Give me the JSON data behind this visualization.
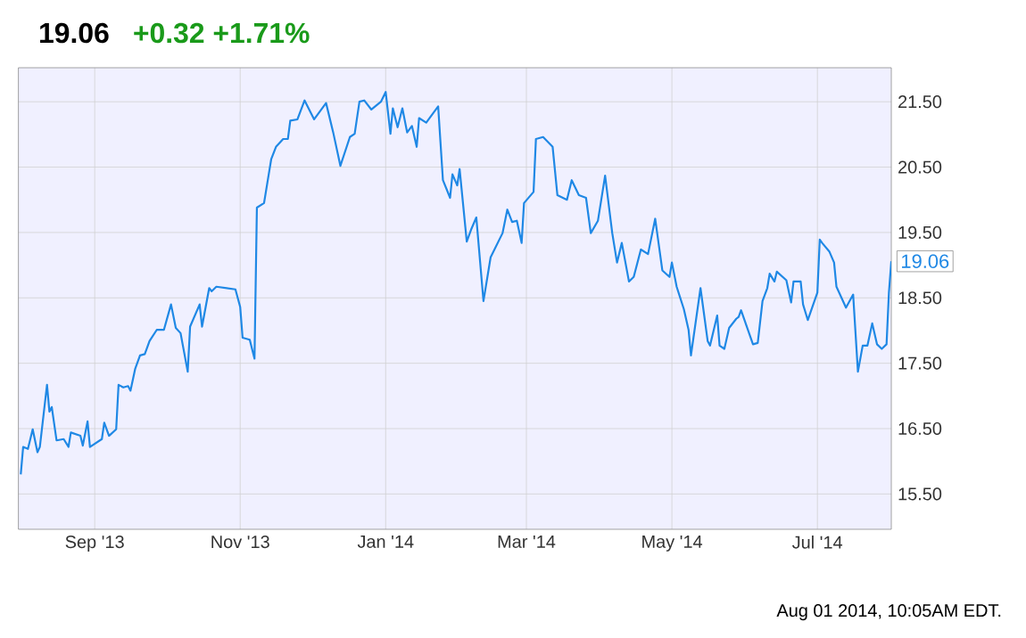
{
  "chart_data": {
    "type": "line",
    "title": "19.06",
    "subtitle": "+0.32   +1.71%",
    "annotations": [
      {
        "text": "19.06",
        "x": "2014-08-01",
        "y": 19.06
      },
      "Aug 01 2014, 10:05AM EDT."
    ],
    "xlim": [
      "2013-07-31",
      "2014-08-01"
    ],
    "xticks": [
      {
        "value": "2013-09-01",
        "label": "Sep '13"
      },
      {
        "value": "2013-11-01",
        "label": "Nov '13"
      },
      {
        "value": "2014-01-01",
        "label": "Jan '14"
      },
      {
        "value": "2014-03-01",
        "label": "Mar '14"
      },
      {
        "value": "2014-05-01",
        "label": "May '14"
      },
      {
        "value": "2014-07-01",
        "label": "Jul '14"
      }
    ],
    "ylim": [
      14.96,
      22.02
    ],
    "yticks": [
      {
        "value": 15.5,
        "label": "15.50"
      },
      {
        "value": 16.5,
        "label": "16.50"
      },
      {
        "value": 17.5,
        "label": "17.50"
      },
      {
        "value": 18.5,
        "label": "18.50"
      },
      {
        "value": 19.5,
        "label": "19.50"
      },
      {
        "value": 20.5,
        "label": "20.50"
      },
      {
        "value": 21.5,
        "label": "21.50"
      }
    ],
    "grid": true,
    "marker": "none",
    "line_style": "solid",
    "series": [
      {
        "color": "#1f88e5",
        "x": [
          "2013-08-01",
          "2013-08-02",
          "2013-08-04",
          "2013-08-06",
          "2013-08-08",
          "2013-08-09",
          "2013-08-12",
          "2013-08-13",
          "2013-08-14",
          "2013-08-16",
          "2013-08-19",
          "2013-08-21",
          "2013-08-22",
          "2013-08-26",
          "2013-08-27",
          "2013-08-29",
          "2013-08-30",
          "2013-09-04",
          "2013-09-05",
          "2013-09-07",
          "2013-09-10",
          "2013-09-11",
          "2013-09-13",
          "2013-09-15",
          "2013-09-16",
          "2013-09-18",
          "2013-09-20",
          "2013-09-22",
          "2013-09-24",
          "2013-09-27",
          "2013-09-30",
          "2013-10-03",
          "2013-10-05",
          "2013-10-07",
          "2013-10-10",
          "2013-10-11",
          "2013-10-15",
          "2013-10-16",
          "2013-10-19",
          "2013-10-20",
          "2013-10-22",
          "2013-10-30",
          "2013-11-01",
          "2013-11-02",
          "2013-11-05",
          "2013-11-07",
          "2013-11-08",
          "2013-11-11",
          "2013-11-14",
          "2013-11-16",
          "2013-11-19",
          "2013-11-21",
          "2013-11-22",
          "2013-11-25",
          "2013-11-28",
          "2013-12-02",
          "2013-12-07",
          "2013-12-10",
          "2013-12-13",
          "2013-12-17",
          "2013-12-19",
          "2013-12-21",
          "2013-12-23",
          "2013-12-26",
          "2013-12-30",
          "2014-01-01",
          "2014-01-03",
          "2014-01-04",
          "2014-01-06",
          "2014-01-08",
          "2014-01-10",
          "2014-01-12",
          "2014-01-14",
          "2014-01-15",
          "2014-01-18",
          "2014-01-23",
          "2014-01-25",
          "2014-01-28",
          "2014-01-29",
          "2014-01-31",
          "2014-02-01",
          "2014-02-04",
          "2014-02-06",
          "2014-02-08",
          "2014-02-11",
          "2014-02-14",
          "2014-02-19",
          "2014-02-21",
          "2014-02-23",
          "2014-02-25",
          "2014-02-27",
          "2014-02-28",
          "2014-03-04",
          "2014-03-05",
          "2014-03-08",
          "2014-03-12",
          "2014-03-14",
          "2014-03-18",
          "2014-03-20",
          "2014-03-23",
          "2014-03-26",
          "2014-03-28",
          "2014-03-31",
          "2014-04-03",
          "2014-04-06",
          "2014-04-08",
          "2014-04-10",
          "2014-04-13",
          "2014-04-15",
          "2014-04-18",
          "2014-04-21",
          "2014-04-24",
          "2014-04-27",
          "2014-04-30",
          "2014-05-01",
          "2014-05-03",
          "2014-05-06",
          "2014-05-08",
          "2014-05-09",
          "2014-05-13",
          "2014-05-16",
          "2014-05-17",
          "2014-05-20",
          "2014-05-21",
          "2014-05-23",
          "2014-05-25",
          "2014-05-28",
          "2014-05-29",
          "2014-05-30",
          "2014-06-04",
          "2014-06-06",
          "2014-06-08",
          "2014-06-10",
          "2014-06-11",
          "2014-06-13",
          "2014-06-14",
          "2014-06-18",
          "2014-06-20",
          "2014-06-21",
          "2014-06-24",
          "2014-06-25",
          "2014-06-27",
          "2014-07-01",
          "2014-07-02",
          "2014-07-03",
          "2014-07-06",
          "2014-07-08",
          "2014-07-09",
          "2014-07-13",
          "2014-07-16",
          "2014-07-18",
          "2014-07-20",
          "2014-07-22",
          "2014-07-24",
          "2014-07-26",
          "2014-07-28",
          "2014-07-30",
          "2014-07-31",
          "2014-08-01"
        ],
        "values": [
          15.8,
          16.22,
          16.19,
          16.49,
          16.14,
          16.22,
          17.17,
          16.76,
          16.83,
          16.32,
          16.34,
          16.22,
          16.44,
          16.39,
          16.24,
          16.61,
          16.22,
          16.34,
          16.59,
          16.39,
          16.49,
          17.17,
          17.13,
          17.15,
          17.08,
          17.42,
          17.62,
          17.64,
          17.84,
          18.01,
          18.01,
          18.4,
          18.04,
          17.96,
          17.37,
          18.06,
          18.4,
          18.06,
          18.65,
          18.6,
          18.67,
          18.63,
          18.36,
          17.89,
          17.86,
          17.57,
          19.88,
          19.95,
          20.62,
          20.81,
          20.93,
          20.93,
          21.21,
          21.23,
          21.52,
          21.23,
          21.48,
          21.03,
          20.52,
          20.96,
          21.01,
          21.5,
          21.52,
          21.38,
          21.5,
          21.65,
          21.01,
          21.4,
          21.11,
          21.4,
          21.03,
          21.13,
          20.81,
          21.25,
          21.18,
          21.43,
          20.3,
          20.03,
          20.39,
          20.22,
          20.47,
          19.36,
          19.56,
          19.73,
          18.45,
          19.12,
          19.49,
          19.85,
          19.66,
          19.68,
          19.34,
          19.95,
          20.12,
          20.93,
          20.96,
          20.81,
          20.07,
          20.0,
          20.3,
          20.07,
          20.03,
          19.49,
          19.68,
          20.37,
          19.49,
          19.04,
          19.34,
          18.75,
          18.82,
          19.24,
          19.17,
          19.71,
          18.92,
          18.82,
          19.04,
          18.67,
          18.33,
          18.01,
          17.62,
          18.65,
          17.84,
          17.77,
          18.23,
          17.77,
          17.72,
          18.04,
          18.18,
          18.21,
          18.31,
          17.79,
          17.81,
          18.45,
          18.65,
          18.87,
          18.75,
          18.9,
          18.77,
          18.43,
          18.75,
          18.75,
          18.4,
          18.16,
          18.58,
          19.39,
          19.34,
          19.21,
          19.04,
          18.67,
          18.35,
          18.55,
          17.37,
          17.77,
          17.77,
          18.11,
          17.79,
          17.72,
          17.79,
          18.58,
          19.06
        ]
      }
    ]
  }
}
